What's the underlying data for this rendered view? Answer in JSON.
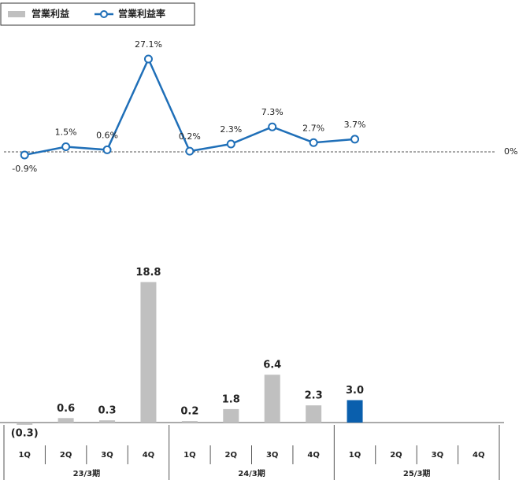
{
  "chart_data": {
    "type": "combo",
    "categories": [
      "1Q",
      "2Q",
      "3Q",
      "4Q",
      "1Q",
      "2Q",
      "3Q",
      "4Q",
      "1Q",
      "2Q",
      "3Q",
      "4Q"
    ],
    "groups": [
      "23/3期",
      "24/3期",
      "25/3期"
    ],
    "series": [
      {
        "name": "営業利益",
        "type": "bar",
        "color": "#c0c0c0",
        "colors": [
          "#c0c0c0",
          "#c0c0c0",
          "#c0c0c0",
          "#c0c0c0",
          "#c0c0c0",
          "#c0c0c0",
          "#c0c0c0",
          "#c0c0c0",
          "#0a5fad",
          "#c0c0c0",
          "#c0c0c0",
          "#c0c0c0"
        ],
        "values": [
          -0.3,
          0.6,
          0.3,
          18.8,
          0.2,
          1.8,
          6.4,
          2.3,
          3.0,
          null,
          null,
          null
        ],
        "value_labels": [
          "(0.3)",
          "0.6",
          "0.3",
          "18.8",
          "0.2",
          "1.8",
          "6.4",
          "2.3",
          "3.0",
          null,
          null,
          null
        ]
      },
      {
        "name": "営業利益率",
        "type": "line",
        "color": "#1f6fb8",
        "axis": "y2",
        "values": [
          -0.9,
          1.5,
          0.6,
          27.1,
          0.2,
          2.3,
          7.3,
          2.7,
          3.7,
          null,
          null,
          null
        ],
        "value_labels": [
          "-0.9%",
          "1.5%",
          "0.6%",
          "27.1%",
          "0.2%",
          "2.3%",
          "7.3%",
          "2.7%",
          "3.7%",
          null,
          null,
          null
        ]
      }
    ],
    "ylim": [
      0,
      20
    ],
    "y2lim": [
      -5,
      30
    ],
    "y2ticks": [
      {
        "value": 0,
        "label": "0%"
      }
    ],
    "negative_label_color": "#e00000",
    "legend": "top-left"
  }
}
